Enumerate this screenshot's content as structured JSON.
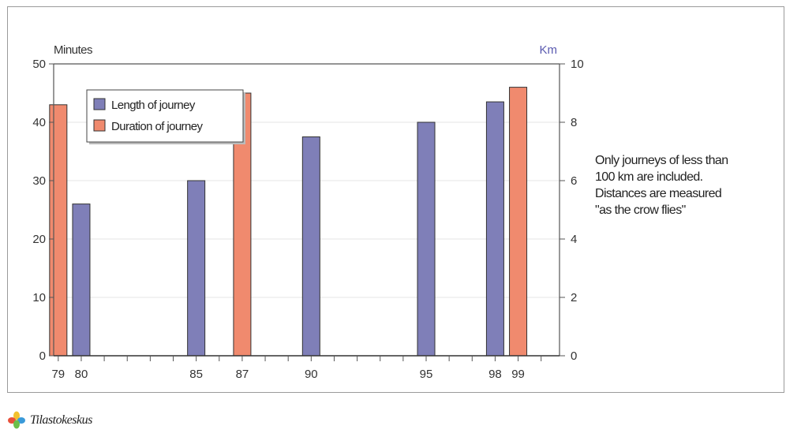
{
  "chart_data": {
    "type": "bar",
    "title": "",
    "categories": [
      "79",
      "80",
      "85",
      "87",
      "90",
      "95",
      "98",
      "99"
    ],
    "series": [
      {
        "name": "Length of journey",
        "axis": "right",
        "color": "#7f7fb8",
        "values": [
          null,
          5.2,
          6.0,
          null,
          7.5,
          8.0,
          8.7,
          null
        ]
      },
      {
        "name": "Duration of journey",
        "axis": "left",
        "color": "#f08a6e",
        "values": [
          43,
          null,
          null,
          45,
          null,
          null,
          null,
          46
        ]
      }
    ],
    "x_positions": [
      79,
      80,
      85,
      87,
      90,
      95,
      98,
      99
    ],
    "xlim": [
      78.8,
      100.8
    ],
    "left_axis": {
      "label": "Minutes",
      "ylim": [
        0,
        50
      ],
      "ticks": [
        0,
        10,
        20,
        30,
        40,
        50
      ]
    },
    "right_axis": {
      "label": "Km",
      "label_color": "#5a5ab0",
      "ylim": [
        0,
        10
      ],
      "ticks": [
        0,
        2,
        4,
        6,
        8,
        10
      ]
    },
    "grid": true,
    "legend_position": "top-left"
  },
  "note": {
    "lines": [
      "Only journeys of less than",
      "100 km are included.",
      "Distances are measured",
      "\"as the crow flies\""
    ]
  },
  "logo": {
    "text": "Tilastokeskus"
  }
}
